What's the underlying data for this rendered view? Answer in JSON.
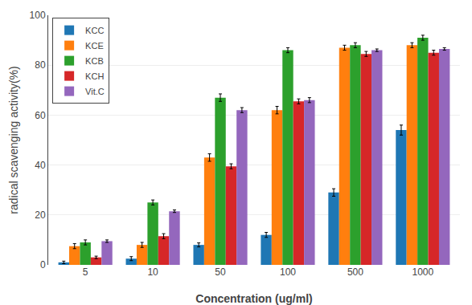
{
  "chart_data": {
    "type": "bar",
    "xlabel": "Concentration (ug/ml)",
    "ylabel": "radical scavenging activity(%)",
    "categories": [
      "5",
      "10",
      "50",
      "100",
      "500",
      "1000"
    ],
    "series": [
      {
        "name": "KCC",
        "values": [
          1.0,
          2.5,
          8.0,
          12.0,
          29.0,
          54.0
        ],
        "errors": [
          0.5,
          0.8,
          0.8,
          1.0,
          1.5,
          2.0
        ]
      },
      {
        "name": "KCE",
        "values": [
          7.5,
          8.0,
          43.0,
          62.0,
          87.0,
          88.0
        ],
        "errors": [
          1.0,
          1.0,
          1.5,
          1.5,
          1.0,
          1.0
        ]
      },
      {
        "name": "KCB",
        "values": [
          9.0,
          25.0,
          67.0,
          86.0,
          88.0,
          91.0
        ],
        "errors": [
          1.0,
          1.0,
          1.5,
          1.0,
          1.0,
          1.0
        ]
      },
      {
        "name": "KCH",
        "values": [
          3.0,
          11.5,
          39.5,
          65.5,
          84.5,
          85.0
        ],
        "errors": [
          0.5,
          1.0,
          1.0,
          1.0,
          1.0,
          1.0
        ]
      },
      {
        "name": "Vit.C",
        "values": [
          9.5,
          21.5,
          62.0,
          66.0,
          86.0,
          86.5
        ],
        "errors": [
          0.5,
          0.5,
          1.0,
          1.0,
          0.5,
          0.5
        ]
      }
    ],
    "ylim": [
      0,
      100
    ],
    "yticks": [
      0,
      20,
      40,
      60,
      80,
      100
    ],
    "grid": true,
    "legend": "upper left"
  }
}
